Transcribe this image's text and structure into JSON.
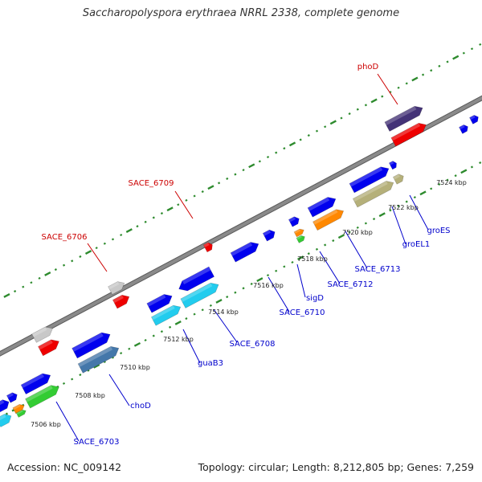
{
  "title": "Saccharopolyspora erythraea NRRL 2338, complete genome",
  "footer": {
    "accession": "Accession: NC_009142",
    "summary": "Topology: circular; Length: 8,212,805 bp; Genes: 7,259"
  },
  "colors": {
    "backbone": "#8a8a8a",
    "tick": "#2e8b2e",
    "label_red": "#cc0000",
    "label_blue": "#0000cc",
    "cds_blue": "#0000ee",
    "cds_red": "#ee0000",
    "gray": "#c8c8c8",
    "cyan": "#22ccee",
    "steel": "#4477aa",
    "green": "#33cc33",
    "orange": "#ff8800",
    "navy": "#443377",
    "khaki": "#b5b07a"
  },
  "scale_ticks": [
    "7506 kbp",
    "7508 kbp",
    "7510 kbp",
    "7512 kbp",
    "7514 kbp",
    "7516 kbp",
    "7518 kbp",
    "7520 kbp",
    "7522 kbp",
    "7524 kbp"
  ],
  "labels": [
    {
      "text": "phoD",
      "color": "red"
    },
    {
      "text": "SACE_6709",
      "color": "red"
    },
    {
      "text": "SACE_6706",
      "color": "red"
    },
    {
      "text": "groES",
      "color": "blue"
    },
    {
      "text": "groEL1",
      "color": "blue"
    },
    {
      "text": "SACE_6713",
      "color": "blue"
    },
    {
      "text": "SACE_6712",
      "color": "blue"
    },
    {
      "text": "sigD",
      "color": "blue"
    },
    {
      "text": "SACE_6710",
      "color": "blue"
    },
    {
      "text": "SACE_6708",
      "color": "blue"
    },
    {
      "text": "guaB3",
      "color": "blue"
    },
    {
      "text": "choD",
      "color": "blue"
    },
    {
      "text": "SACE_6703",
      "color": "blue"
    }
  ]
}
